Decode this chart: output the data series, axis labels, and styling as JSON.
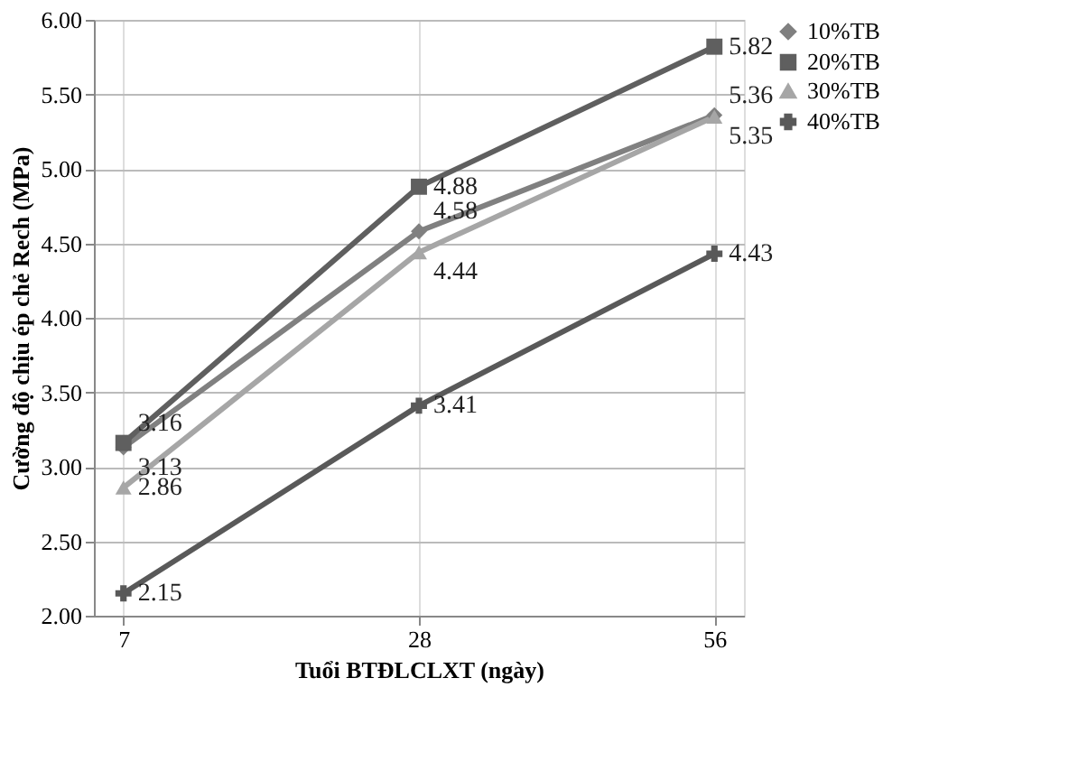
{
  "chart_data": {
    "type": "line",
    "xlabel": "Tuổi BTĐLCLXT (ngày)",
    "ylabel": "Cường độ chịu ép chẻ Rech (MPa)",
    "categories": [
      "7",
      "28",
      "56"
    ],
    "series": [
      {
        "name": "10%TB",
        "color": "#808080",
        "marker": "diamond",
        "values": [
          3.13,
          4.58,
          5.36
        ]
      },
      {
        "name": "20%TB",
        "color": "#5f5f5f",
        "marker": "square",
        "values": [
          3.16,
          4.88,
          5.82
        ]
      },
      {
        "name": "30%TB",
        "color": "#a6a6a6",
        "marker": "triangle",
        "values": [
          2.86,
          4.44,
          5.35
        ]
      },
      {
        "name": "40%TB",
        "color": "#595959",
        "marker": "cross",
        "values": [
          2.15,
          3.41,
          4.43
        ]
      }
    ],
    "ylim": [
      2,
      6
    ],
    "yticks": [
      {
        "value": 2,
        "label": "2.00"
      },
      {
        "value": 2.5,
        "label": "2.50"
      },
      {
        "value": 3,
        "label": "3.00"
      },
      {
        "value": 3.5,
        "label": "3.50"
      },
      {
        "value": 4,
        "label": "4.00"
      },
      {
        "value": 4.5,
        "label": "4.50"
      },
      {
        "value": 5,
        "label": "5.00"
      },
      {
        "value": 5.5,
        "label": "5.50"
      },
      {
        "value": 6,
        "label": "6.00"
      }
    ],
    "grid": true,
    "legend": "right",
    "data_labels": true,
    "line_style": "solid"
  }
}
